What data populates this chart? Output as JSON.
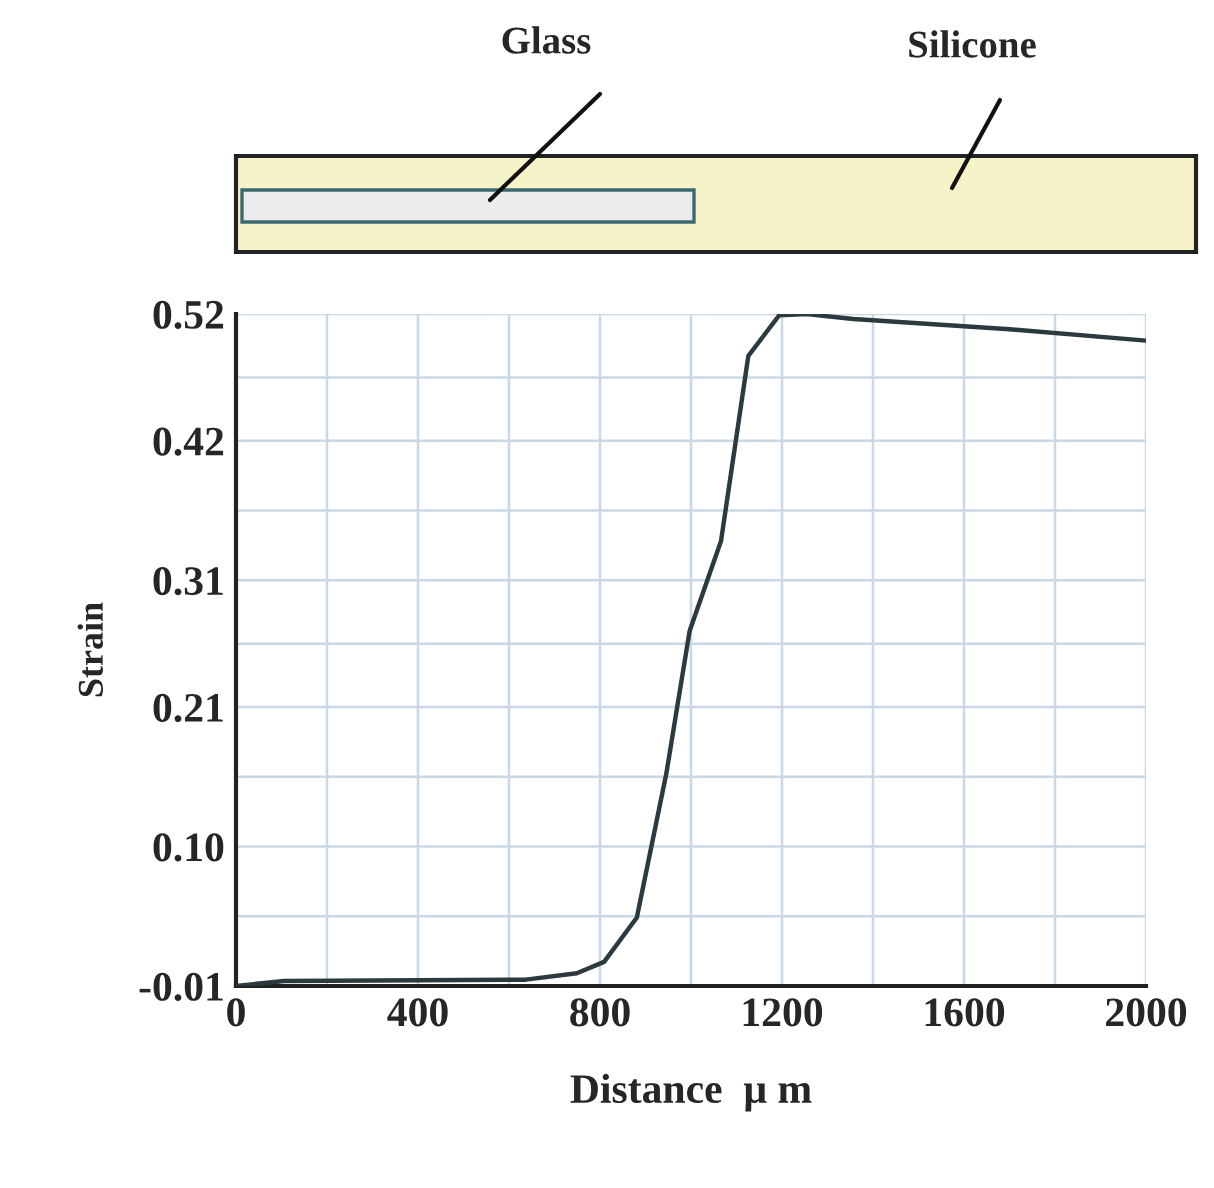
{
  "chart_data": {
    "type": "line",
    "xlabel": "Distance  μ m",
    "ylabel": "Strain",
    "annotations": [
      "Glass",
      "Silicone"
    ],
    "series": [
      {
        "color": "#2b3a3f",
        "x": [
          0,
          106,
          637,
          749,
          809,
          881,
          946,
          997,
          1066,
          1126,
          1194,
          1254,
          1357,
          1700,
          2000
        ],
        "values": [
          -0.01,
          -0.006,
          -0.005,
          0.0,
          0.009,
          0.044,
          0.158,
          0.27,
          0.341,
          0.487,
          0.519,
          0.52,
          0.516,
          0.508,
          0.499
        ]
      }
    ],
    "xlim": [
      0,
      2000
    ],
    "xticks": [
      0,
      400,
      800,
      1200,
      1600,
      2000
    ],
    "ylim": [
      -0.01,
      0.52
    ],
    "yticks": [
      -0.01,
      {
        "value": 0.1,
        "label": "0.10"
      },
      0.21,
      0.31,
      0.42,
      0.52
    ],
    "grid": true,
    "legend": false,
    "marker": "none",
    "line_style": "solid"
  }
}
